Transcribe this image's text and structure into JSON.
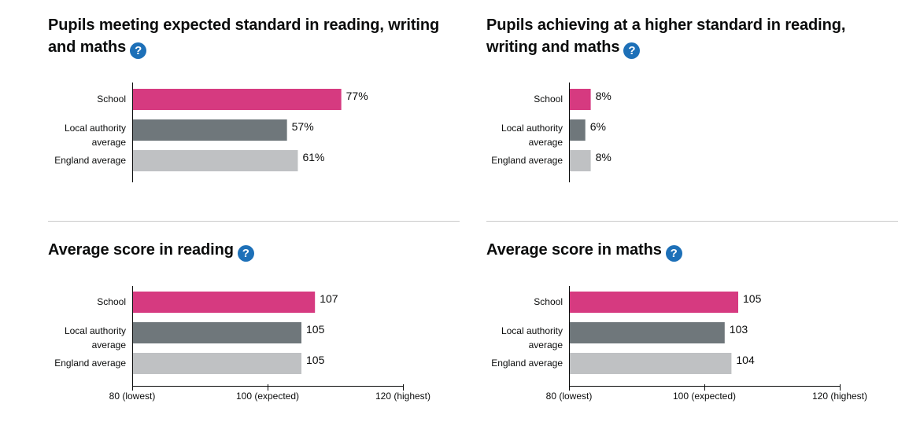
{
  "colors": {
    "school": "#d63a80",
    "local_authority": "#6f777b",
    "england": "#bfc1c3",
    "help": "#1d70b8"
  },
  "help_icon": "question-mark",
  "chart_data": [
    {
      "id": "expected",
      "type": "bar",
      "title_lines": [
        "Pupils meeting expected standard in reading, writing",
        "and maths"
      ],
      "categories": [
        [
          "School"
        ],
        [
          "Local authority",
          "average"
        ],
        [
          "England average"
        ]
      ],
      "values": [
        77,
        57,
        61
      ],
      "value_labels": [
        "77%",
        "57%",
        "61%"
      ],
      "xlim": [
        0,
        100
      ],
      "ticks": []
    },
    {
      "id": "higher",
      "type": "bar",
      "title_lines": [
        "Pupils achieving at a higher standard in reading,",
        "writing and maths"
      ],
      "categories": [
        [
          "School"
        ],
        [
          "Local authority",
          "average"
        ],
        [
          "England average"
        ]
      ],
      "values": [
        8,
        6,
        8
      ],
      "value_labels": [
        "8%",
        "6%",
        "8%"
      ],
      "xlim": [
        0,
        100
      ],
      "ticks": []
    },
    {
      "id": "reading",
      "type": "bar",
      "title_lines": [
        "Average score in reading"
      ],
      "categories": [
        [
          "School"
        ],
        [
          "Local authority",
          "average"
        ],
        [
          "England average"
        ]
      ],
      "values": [
        107,
        105,
        105
      ],
      "value_labels": [
        "107",
        "105",
        "105"
      ],
      "xlim": [
        80,
        120
      ],
      "ticks": [
        {
          "value": 80,
          "label": "80 (lowest)"
        },
        {
          "value": 100,
          "label": "100 (expected)"
        },
        {
          "value": 120,
          "label": "120 (highest)"
        }
      ]
    },
    {
      "id": "maths",
      "type": "bar",
      "title_lines": [
        "Average score in maths"
      ],
      "categories": [
        [
          "School"
        ],
        [
          "Local authority",
          "average"
        ],
        [
          "England average"
        ]
      ],
      "values": [
        105,
        103,
        104
      ],
      "value_labels": [
        "105",
        "103",
        "104"
      ],
      "xlim": [
        80,
        120
      ],
      "ticks": [
        {
          "value": 80,
          "label": "80 (lowest)"
        },
        {
          "value": 100,
          "label": "100 (expected)"
        },
        {
          "value": 120,
          "label": "120 (highest)"
        }
      ]
    }
  ]
}
